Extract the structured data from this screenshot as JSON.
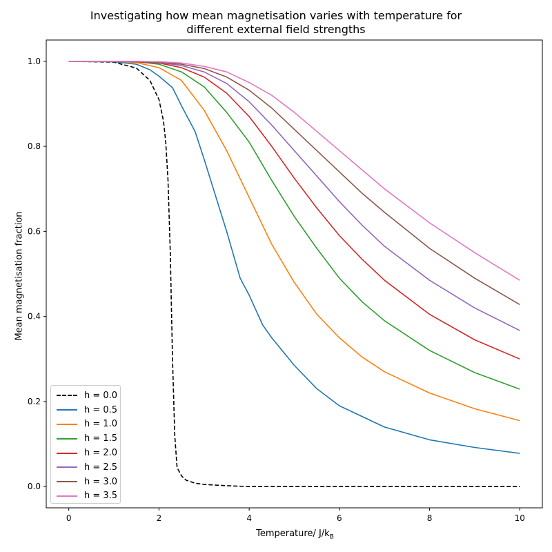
{
  "chart_data": {
    "type": "line",
    "title_lines": [
      "Investigating how mean magnetisation varies with temperature for",
      "different external field strengths"
    ],
    "xlabel": "Temperature/ J/k",
    "xlabel_sub": "B",
    "ylabel": "Mean magnetisation fraction",
    "xlim": [
      -0.5,
      10.5
    ],
    "ylim": [
      -0.05,
      1.05
    ],
    "xticks": [
      0,
      2,
      4,
      6,
      8,
      10
    ],
    "xtick_labels": [
      "0",
      "2",
      "4",
      "6",
      "8",
      "10"
    ],
    "yticks": [
      0.0,
      0.2,
      0.4,
      0.6,
      0.8,
      1.0
    ],
    "ytick_labels": [
      "0.0",
      "0.2",
      "0.4",
      "0.6",
      "0.8",
      "1.0"
    ],
    "grid": false,
    "legend_position": "lower-left",
    "series": [
      {
        "name": "h = 0.0",
        "color": "#000000",
        "dashed": true,
        "x": [
          0,
          1.0,
          1.5,
          1.8,
          2.0,
          2.1,
          2.15,
          2.2,
          2.25,
          2.3,
          2.35,
          2.4,
          2.5,
          2.6,
          2.8,
          3.0,
          3.5,
          4,
          6,
          8,
          10
        ],
        "y": [
          1.0,
          0.998,
          0.984,
          0.955,
          0.91,
          0.86,
          0.81,
          0.72,
          0.55,
          0.3,
          0.12,
          0.045,
          0.025,
          0.015,
          0.008,
          0.005,
          0.002,
          0.0,
          0.0,
          0.0,
          0.0
        ]
      },
      {
        "name": "h = 0.5",
        "color": "#1f77b4",
        "dashed": false,
        "x": [
          0,
          1.0,
          1.5,
          1.8,
          2.0,
          2.3,
          2.5,
          2.8,
          3.0,
          3.5,
          3.8,
          4.0,
          4.3,
          4.5,
          5.0,
          5.5,
          6.0,
          7.0,
          8.0,
          9.0,
          10.0
        ],
        "y": [
          1.0,
          0.999,
          0.993,
          0.98,
          0.965,
          0.938,
          0.895,
          0.835,
          0.77,
          0.6,
          0.49,
          0.45,
          0.38,
          0.35,
          0.285,
          0.23,
          0.19,
          0.14,
          0.11,
          0.092,
          0.078
        ]
      },
      {
        "name": "h = 1.0",
        "color": "#ff7f0e",
        "dashed": false,
        "x": [
          0,
          1.0,
          1.5,
          2.0,
          2.5,
          3.0,
          3.5,
          4.0,
          4.5,
          5.0,
          5.5,
          6.0,
          6.5,
          7.0,
          8.0,
          9.0,
          10.0
        ],
        "y": [
          1.0,
          1.0,
          0.997,
          0.985,
          0.955,
          0.885,
          0.79,
          0.68,
          0.57,
          0.48,
          0.405,
          0.35,
          0.305,
          0.27,
          0.22,
          0.183,
          0.155
        ]
      },
      {
        "name": "h = 1.5",
        "color": "#2ca02c",
        "dashed": false,
        "x": [
          0,
          1.0,
          1.5,
          2.0,
          2.5,
          3.0,
          3.5,
          4.0,
          4.5,
          5.0,
          5.5,
          6.0,
          6.5,
          7.0,
          8.0,
          9.0,
          10.0
        ],
        "y": [
          1.0,
          1.0,
          0.999,
          0.993,
          0.975,
          0.94,
          0.88,
          0.81,
          0.72,
          0.635,
          0.56,
          0.49,
          0.435,
          0.39,
          0.32,
          0.268,
          0.229
        ]
      },
      {
        "name": "h = 2.0",
        "color": "#d62728",
        "dashed": false,
        "x": [
          0,
          1.0,
          1.5,
          2.0,
          2.5,
          3.0,
          3.5,
          4.0,
          4.5,
          5.0,
          5.5,
          6.0,
          6.5,
          7.0,
          8.0,
          9.0,
          10.0
        ],
        "y": [
          1.0,
          1.0,
          0.999,
          0.996,
          0.985,
          0.963,
          0.925,
          0.87,
          0.8,
          0.725,
          0.655,
          0.59,
          0.535,
          0.485,
          0.405,
          0.345,
          0.3
        ]
      },
      {
        "name": "h = 2.5",
        "color": "#9467bd",
        "dashed": false,
        "x": [
          0,
          1.0,
          1.5,
          2.0,
          2.5,
          3.0,
          3.5,
          4.0,
          4.5,
          5.0,
          5.5,
          6.0,
          6.5,
          7.0,
          8.0,
          9.0,
          10.0
        ],
        "y": [
          1.0,
          1.0,
          1.0,
          0.997,
          0.99,
          0.975,
          0.948,
          0.905,
          0.85,
          0.79,
          0.73,
          0.67,
          0.615,
          0.565,
          0.485,
          0.42,
          0.367
        ]
      },
      {
        "name": "h = 3.0",
        "color": "#8c564b",
        "dashed": false,
        "x": [
          0,
          1.0,
          1.5,
          2.0,
          2.5,
          3.0,
          3.5,
          4.0,
          4.5,
          5.0,
          5.5,
          6.0,
          6.5,
          7.0,
          8.0,
          9.0,
          10.0
        ],
        "y": [
          1.0,
          1.0,
          1.0,
          0.998,
          0.993,
          0.983,
          0.963,
          0.932,
          0.89,
          0.84,
          0.79,
          0.74,
          0.69,
          0.645,
          0.56,
          0.49,
          0.428
        ]
      },
      {
        "name": "h = 3.5",
        "color": "#e377c2",
        "dashed": false,
        "x": [
          0,
          1.0,
          1.5,
          2.0,
          2.5,
          3.0,
          3.5,
          4.0,
          4.5,
          5.0,
          5.5,
          6.0,
          6.5,
          7.0,
          8.0,
          9.0,
          10.0
        ],
        "y": [
          1.0,
          1.0,
          1.0,
          0.999,
          0.996,
          0.988,
          0.975,
          0.95,
          0.92,
          0.88,
          0.835,
          0.79,
          0.745,
          0.7,
          0.62,
          0.55,
          0.485
        ]
      }
    ]
  }
}
